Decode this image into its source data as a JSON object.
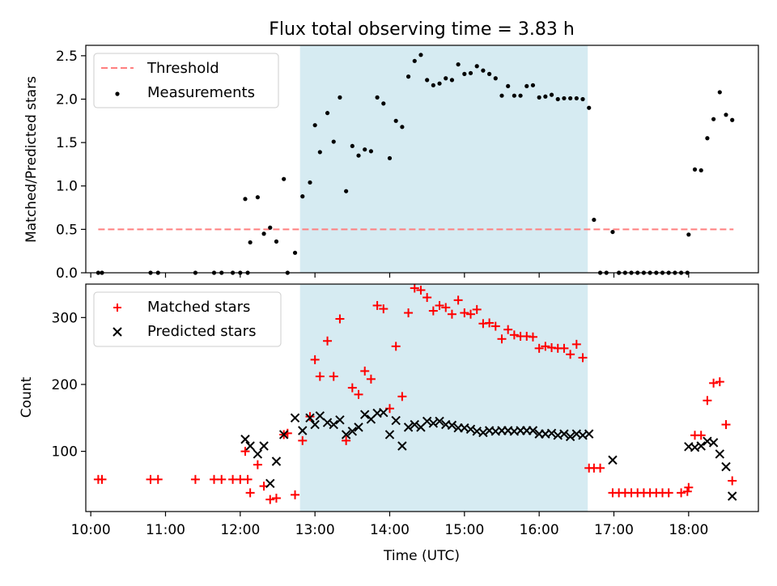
{
  "title": "Flux total observing time = 3.83 h",
  "colors": {
    "threshold": "#ff7f7f",
    "measurement": "#000000",
    "matched": "#ff0000",
    "predicted": "#000000",
    "span": "#add8e6"
  },
  "chart_data": [
    {
      "type": "scatter",
      "title": "Flux total observing time = 3.83 h",
      "xlabel": "",
      "ylabel": "Matched/Predicted stars",
      "xlim": [
        "09:56",
        "18:56"
      ],
      "ylim": [
        0,
        2.62
      ],
      "yticks": [
        0,
        0.5,
        1,
        1.5,
        2,
        2.5
      ],
      "ytick_labels": [
        "0.0",
        "0.5",
        "1.0",
        "1.5",
        "2.0",
        "2.5"
      ],
      "xticks": [
        "10:00",
        "11:00",
        "12:00",
        "13:00",
        "14:00",
        "15:00",
        "16:00",
        "17:00",
        "18:00"
      ],
      "grid": false,
      "legend_position": "top-left",
      "highlight_span": [
        "12:48",
        "16:39"
      ],
      "series": [
        {
          "name": "Threshold",
          "kind": "dashed-line",
          "x": [
            "10:06",
            "18:36"
          ],
          "y": [
            0.5,
            0.5
          ]
        },
        {
          "name": "Measurements",
          "kind": "scatter",
          "points": [
            [
              "10:06",
              0.0
            ],
            [
              "10:09",
              0.0
            ],
            [
              "10:48",
              0.0
            ],
            [
              "10:54",
              0.0
            ],
            [
              "11:24",
              0.0
            ],
            [
              "11:39",
              0.0
            ],
            [
              "11:45",
              0.0
            ],
            [
              "11:54",
              0.0
            ],
            [
              "12:00",
              0.0
            ],
            [
              "12:06",
              0.0
            ],
            [
              "12:04",
              0.85
            ],
            [
              "12:08",
              0.35
            ],
            [
              "12:14",
              0.87
            ],
            [
              "12:19",
              0.45
            ],
            [
              "12:24",
              0.52
            ],
            [
              "12:29",
              0.36
            ],
            [
              "12:35",
              1.08
            ],
            [
              "12:38",
              0.0
            ],
            [
              "12:44",
              0.23
            ],
            [
              "12:50",
              0.88
            ],
            [
              "12:56",
              1.04
            ],
            [
              "13:00",
              1.7
            ],
            [
              "13:04",
              1.39
            ],
            [
              "13:10",
              1.84
            ],
            [
              "13:15",
              1.51
            ],
            [
              "13:20",
              2.02
            ],
            [
              "13:25",
              0.94
            ],
            [
              "13:30",
              1.46
            ],
            [
              "13:35",
              1.35
            ],
            [
              "13:40",
              1.42
            ],
            [
              "13:45",
              1.4
            ],
            [
              "13:50",
              2.02
            ],
            [
              "13:55",
              1.95
            ],
            [
              "14:00",
              1.32
            ],
            [
              "14:05",
              1.75
            ],
            [
              "14:10",
              1.68
            ],
            [
              "14:15",
              2.26
            ],
            [
              "14:20",
              2.44
            ],
            [
              "14:25",
              2.51
            ],
            [
              "14:30",
              2.22
            ],
            [
              "14:35",
              2.16
            ],
            [
              "14:40",
              2.18
            ],
            [
              "14:45",
              2.24
            ],
            [
              "14:50",
              2.22
            ],
            [
              "14:55",
              2.4
            ],
            [
              "15:00",
              2.29
            ],
            [
              "15:05",
              2.3
            ],
            [
              "15:10",
              2.38
            ],
            [
              "15:15",
              2.33
            ],
            [
              "15:20",
              2.29
            ],
            [
              "15:25",
              2.24
            ],
            [
              "15:30",
              2.04
            ],
            [
              "15:35",
              2.15
            ],
            [
              "15:40",
              2.04
            ],
            [
              "15:45",
              2.04
            ],
            [
              "15:50",
              2.15
            ],
            [
              "15:55",
              2.16
            ],
            [
              "16:00",
              2.02
            ],
            [
              "16:05",
              2.03
            ],
            [
              "16:10",
              2.05
            ],
            [
              "16:15",
              2.0
            ],
            [
              "16:20",
              2.01
            ],
            [
              "16:25",
              2.01
            ],
            [
              "16:30",
              2.01
            ],
            [
              "16:35",
              2.0
            ],
            [
              "16:40",
              1.9
            ],
            [
              "16:44",
              0.61
            ],
            [
              "16:49",
              0.0
            ],
            [
              "16:54",
              0.0
            ],
            [
              "16:59",
              0.47
            ],
            [
              "17:04",
              0.0
            ],
            [
              "17:09",
              0.0
            ],
            [
              "17:14",
              0.0
            ],
            [
              "17:19",
              0.0
            ],
            [
              "17:24",
              0.0
            ],
            [
              "17:29",
              0.0
            ],
            [
              "17:34",
              0.0
            ],
            [
              "17:39",
              0.0
            ],
            [
              "17:44",
              0.0
            ],
            [
              "17:49",
              0.0
            ],
            [
              "17:54",
              0.0
            ],
            [
              "17:59",
              0.0
            ],
            [
              "18:00",
              0.44
            ],
            [
              "18:05",
              1.19
            ],
            [
              "18:10",
              1.18
            ],
            [
              "18:15",
              1.55
            ],
            [
              "18:20",
              1.77
            ],
            [
              "18:25",
              2.08
            ],
            [
              "18:30",
              1.82
            ],
            [
              "18:35",
              1.76
            ]
          ]
        }
      ]
    },
    {
      "type": "scatter",
      "title": "",
      "xlabel": "Time (UTC)",
      "ylabel": "Count",
      "xlim": [
        "09:56",
        "18:56"
      ],
      "ylim": [
        10,
        350
      ],
      "yticks": [
        100,
        200,
        300
      ],
      "ytick_labels": [
        "100",
        "200",
        "300"
      ],
      "xticks": [
        "10:00",
        "11:00",
        "12:00",
        "13:00",
        "14:00",
        "15:00",
        "16:00",
        "17:00",
        "18:00"
      ],
      "xtick_labels": [
        "10:00",
        "11:00",
        "12:00",
        "13:00",
        "14:00",
        "15:00",
        "16:00",
        "17:00",
        "18:00"
      ],
      "grid": false,
      "legend_position": "top-left",
      "highlight_span": [
        "12:48",
        "16:39"
      ],
      "series": [
        {
          "name": "Matched stars",
          "kind": "plus",
          "points": [
            [
              "10:06",
              58
            ],
            [
              "10:09",
              58
            ],
            [
              "10:48",
              58
            ],
            [
              "10:54",
              58
            ],
            [
              "11:24",
              58
            ],
            [
              "11:39",
              58
            ],
            [
              "11:45",
              58
            ],
            [
              "11:54",
              58
            ],
            [
              "12:00",
              58
            ],
            [
              "12:06",
              58
            ],
            [
              "12:04",
              100
            ],
            [
              "12:08",
              38
            ],
            [
              "12:14",
              80
            ],
            [
              "12:19",
              48
            ],
            [
              "12:24",
              28
            ],
            [
              "12:29",
              30
            ],
            [
              "12:35",
              125
            ],
            [
              "12:38",
              127
            ],
            [
              "12:44",
              35
            ],
            [
              "12:50",
              116
            ],
            [
              "12:56",
              152
            ],
            [
              "13:00",
              237
            ],
            [
              "13:04",
              212
            ],
            [
              "13:10",
              265
            ],
            [
              "13:15",
              212
            ],
            [
              "13:20",
              298
            ],
            [
              "13:25",
              116
            ],
            [
              "13:30",
              195
            ],
            [
              "13:35",
              185
            ],
            [
              "13:40",
              220
            ],
            [
              "13:45",
              208
            ],
            [
              "13:50",
              318
            ],
            [
              "13:55",
              313
            ],
            [
              "14:00",
              164
            ],
            [
              "14:05",
              257
            ],
            [
              "14:10",
              182
            ],
            [
              "14:15",
              307
            ],
            [
              "14:20",
              344
            ],
            [
              "14:25",
              341
            ],
            [
              "14:30",
              330
            ],
            [
              "14:35",
              310
            ],
            [
              "14:40",
              318
            ],
            [
              "14:45",
              315
            ],
            [
              "14:50",
              305
            ],
            [
              "14:55",
              326
            ],
            [
              "15:00",
              307
            ],
            [
              "15:05",
              305
            ],
            [
              "15:10",
              312
            ],
            [
              "15:15",
              291
            ],
            [
              "15:20",
              292
            ],
            [
              "15:25",
              287
            ],
            [
              "15:30",
              268
            ],
            [
              "15:35",
              282
            ],
            [
              "15:40",
              274
            ],
            [
              "15:45",
              272
            ],
            [
              "15:50",
              272
            ],
            [
              "15:55",
              271
            ],
            [
              "16:00",
              254
            ],
            [
              "16:05",
              257
            ],
            [
              "16:10",
              255
            ],
            [
              "16:15",
              254
            ],
            [
              "16:20",
              254
            ],
            [
              "16:25",
              245
            ],
            [
              "16:30",
              260
            ],
            [
              "16:35",
              240
            ],
            [
              "16:40",
              75
            ],
            [
              "16:44",
              75
            ],
            [
              "16:49",
              75
            ],
            [
              "16:59",
              38
            ],
            [
              "17:04",
              38
            ],
            [
              "17:09",
              38
            ],
            [
              "17:14",
              38
            ],
            [
              "17:19",
              38
            ],
            [
              "17:24",
              38
            ],
            [
              "17:29",
              38
            ],
            [
              "17:34",
              38
            ],
            [
              "17:39",
              38
            ],
            [
              "17:44",
              38
            ],
            [
              "17:54",
              38
            ],
            [
              "17:59",
              40
            ],
            [
              "18:00",
              46
            ],
            [
              "18:05",
              124
            ],
            [
              "18:10",
              124
            ],
            [
              "18:15",
              176
            ],
            [
              "18:20",
              202
            ],
            [
              "18:25",
              204
            ],
            [
              "18:30",
              140
            ],
            [
              "18:35",
              56
            ]
          ]
        },
        {
          "name": "Predicted stars",
          "kind": "cross",
          "points": [
            [
              "12:04",
              118
            ],
            [
              "12:08",
              108
            ],
            [
              "12:14",
              96
            ],
            [
              "12:19",
              108
            ],
            [
              "12:24",
              52
            ],
            [
              "12:29",
              85
            ],
            [
              "12:35",
              125
            ],
            [
              "12:44",
              150
            ],
            [
              "12:50",
              131
            ],
            [
              "12:56",
              150
            ],
            [
              "13:00",
              140
            ],
            [
              "13:04",
              153
            ],
            [
              "13:10",
              143
            ],
            [
              "13:15",
              140
            ],
            [
              "13:20",
              147
            ],
            [
              "13:25",
              125
            ],
            [
              "13:30",
              130
            ],
            [
              "13:35",
              136
            ],
            [
              "13:40",
              155
            ],
            [
              "13:45",
              148
            ],
            [
              "13:50",
              157
            ],
            [
              "13:55",
              158
            ],
            [
              "14:00",
              125
            ],
            [
              "14:05",
              146
            ],
            [
              "14:10",
              108
            ],
            [
              "14:15",
              136
            ],
            [
              "14:20",
              140
            ],
            [
              "14:25",
              136
            ],
            [
              "14:30",
              145
            ],
            [
              "14:35",
              142
            ],
            [
              "14:40",
              145
            ],
            [
              "14:45",
              140
            ],
            [
              "14:50",
              139
            ],
            [
              "14:55",
              135
            ],
            [
              "15:00",
              135
            ],
            [
              "15:05",
              133
            ],
            [
              "15:10",
              130
            ],
            [
              "15:15",
              128
            ],
            [
              "15:20",
              131
            ],
            [
              "15:25",
              130
            ],
            [
              "15:30",
              131
            ],
            [
              "15:35",
              131
            ],
            [
              "15:40",
              130
            ],
            [
              "15:45",
              131
            ],
            [
              "15:50",
              131
            ],
            [
              "15:55",
              131
            ],
            [
              "16:00",
              126
            ],
            [
              "16:05",
              126
            ],
            [
              "16:10",
              127
            ],
            [
              "16:15",
              124
            ],
            [
              "16:20",
              126
            ],
            [
              "16:25",
              122
            ],
            [
              "16:30",
              126
            ],
            [
              "16:35",
              124
            ],
            [
              "16:40",
              126
            ],
            [
              "16:59",
              87
            ],
            [
              "18:00",
              107
            ],
            [
              "18:05",
              106
            ],
            [
              "18:10",
              108
            ],
            [
              "18:15",
              115
            ],
            [
              "18:20",
              113
            ],
            [
              "18:25",
              96
            ],
            [
              "18:30",
              77
            ],
            [
              "18:35",
              33
            ]
          ]
        }
      ]
    }
  ]
}
